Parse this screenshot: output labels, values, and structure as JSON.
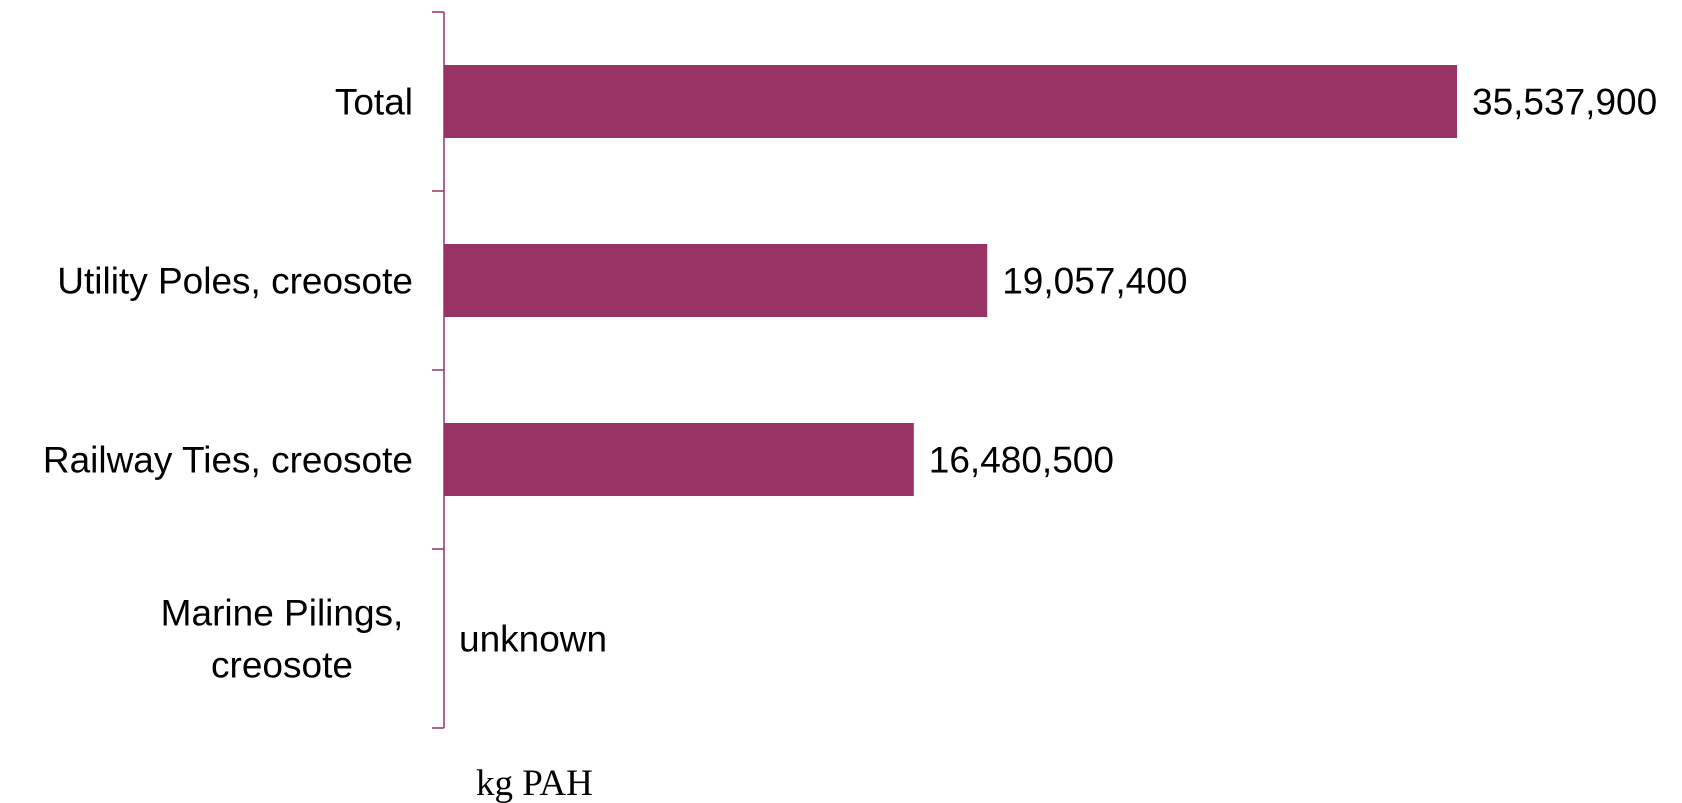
{
  "chart_data": {
    "type": "bar",
    "orientation": "horizontal",
    "categories": [
      "Total",
      "Utility Poles, creosote",
      "Railway Ties, creosote",
      "Marine Pilings, creosote"
    ],
    "category_lines": [
      [
        "Total"
      ],
      [
        "Utility Poles, creosote"
      ],
      [
        "Railway Ties, creosote"
      ],
      [
        "Marine Pilings,",
        "creosote"
      ]
    ],
    "values": [
      35537900,
      19057400,
      16480500,
      null
    ],
    "value_labels": [
      "35,537,900",
      "19,057,400",
      "16,480,500",
      "unknown"
    ],
    "xlabel": "kg PAH",
    "ylabel": "",
    "title": "",
    "xlim": [
      0,
      35537900
    ],
    "grid": false,
    "legend": "none",
    "colors": {
      "bar": "#993366",
      "axis": "#993366"
    }
  }
}
